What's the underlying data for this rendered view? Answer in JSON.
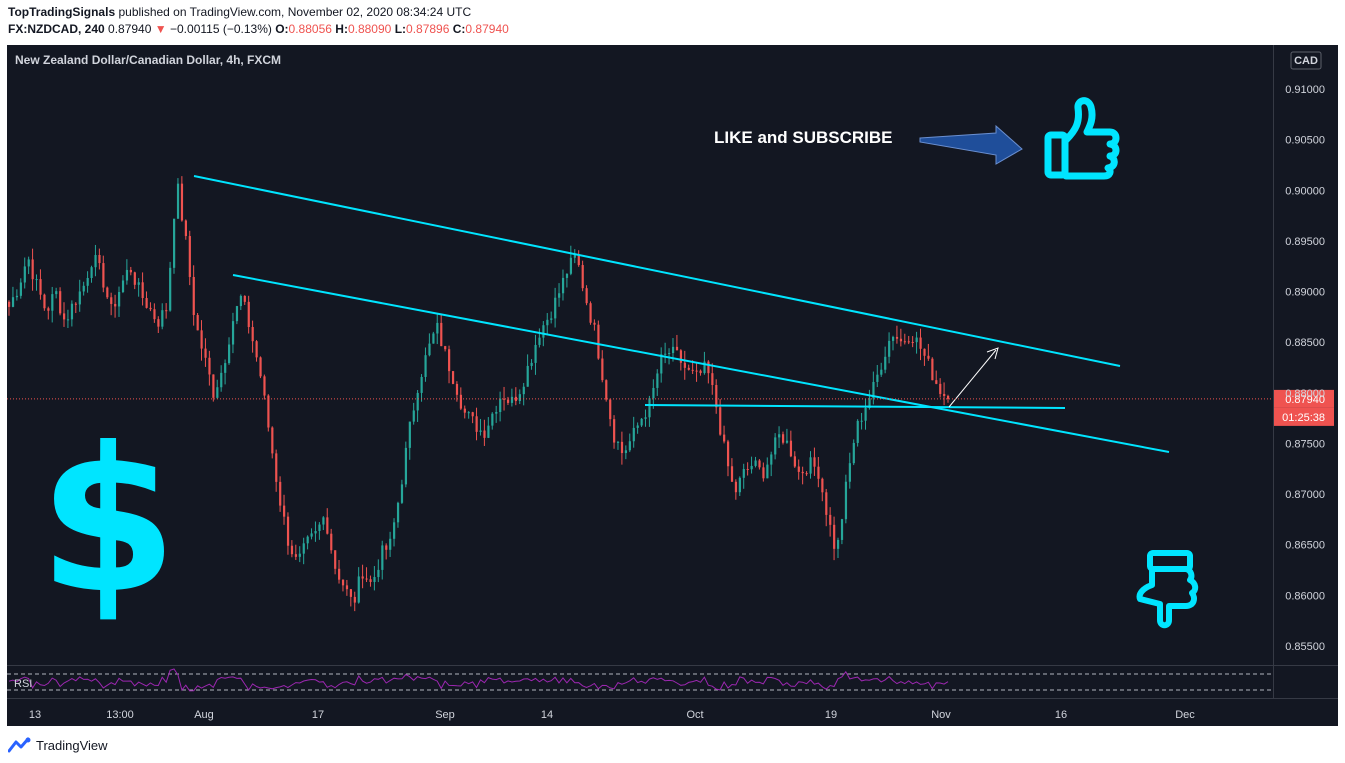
{
  "header": {
    "author": "TopTradingSignals",
    "published_text": "published on TradingView.com, November 02, 2020 08:34:24 UTC",
    "symbol": "FX:NZDCAD, 240",
    "last": "0.87940",
    "change_arrow": "▼",
    "change": "−0.00115 (−0.13%)",
    "o_label": "O:",
    "o_value": "0.88056",
    "h_label": "H:",
    "h_value": "0.88090",
    "l_label": "L:",
    "l_value": "0.87896",
    "c_label": "C:",
    "c_value": "0.87940"
  },
  "chart_data": {
    "type": "candlestick",
    "title": "New Zealand Dollar/Canadian Dollar, 4h, FXCM",
    "currency": "CAD",
    "y_axis": {
      "range": [
        0.8525,
        0.914
      ],
      "ticks": [
        "0.91000",
        "0.90500",
        "0.90000",
        "0.89500",
        "0.89000",
        "0.88500",
        "0.88000",
        "0.87500",
        "0.87000",
        "0.86500",
        "0.86000",
        "0.85500"
      ]
    },
    "x_axis": {
      "ticks": [
        "13",
        "13:00",
        "Aug",
        "17",
        "Sep",
        "14",
        "Oct",
        "19",
        "Nov",
        "16",
        "Dec"
      ]
    },
    "last_price": "0.87940",
    "countdown": "01:25:38",
    "close_path": [
      0.8885,
      0.8905,
      0.8935,
      0.8905,
      0.888,
      0.89,
      0.887,
      0.889,
      0.8905,
      0.8935,
      0.8915,
      0.888,
      0.8905,
      0.8925,
      0.89,
      0.8885,
      0.887,
      0.8885,
      0.901,
      0.895,
      0.887,
      0.8835,
      0.88,
      0.8825,
      0.887,
      0.8895,
      0.886,
      0.882,
      0.876,
      0.87,
      0.8655,
      0.863,
      0.865,
      0.866,
      0.868,
      0.863,
      0.861,
      0.859,
      0.8625,
      0.861,
      0.864,
      0.865,
      0.87,
      0.876,
      0.881,
      0.884,
      0.8865,
      0.8835,
      0.881,
      0.878,
      0.877,
      0.876,
      0.878,
      0.88,
      0.879,
      0.8805,
      0.883,
      0.886,
      0.8875,
      0.8895,
      0.892,
      0.8935,
      0.8895,
      0.886,
      0.881,
      0.876,
      0.874,
      0.8755,
      0.8775,
      0.879,
      0.883,
      0.884,
      0.8835,
      0.882,
      0.8815,
      0.8825,
      0.879,
      0.874,
      0.87,
      0.872,
      0.873,
      0.872,
      0.874,
      0.876,
      0.8745,
      0.872,
      0.873,
      0.8725,
      0.868,
      0.864,
      0.8705,
      0.876,
      0.8785,
      0.8805,
      0.8835,
      0.886,
      0.885,
      0.886,
      0.8845,
      0.8825,
      0.8805,
      0.8794
    ],
    "price_labels": [],
    "drawings": [
      {
        "kind": "trendline",
        "label": ""
      },
      {
        "kind": "trendline",
        "label": ""
      },
      {
        "kind": "horizontal",
        "label": ""
      }
    ],
    "annotations": {
      "cta_text": "LIKE and SUBSCRIBE",
      "dollar_symbol": "$"
    },
    "indicator": "RSI",
    "colors": {
      "background": "#131722",
      "up": "#26a69a",
      "down": "#ef5350",
      "trendline": "#00e5ff",
      "rsi": "#9c27b0",
      "accent": "#ef5350"
    }
  },
  "footer": {
    "brand": "TradingView"
  }
}
